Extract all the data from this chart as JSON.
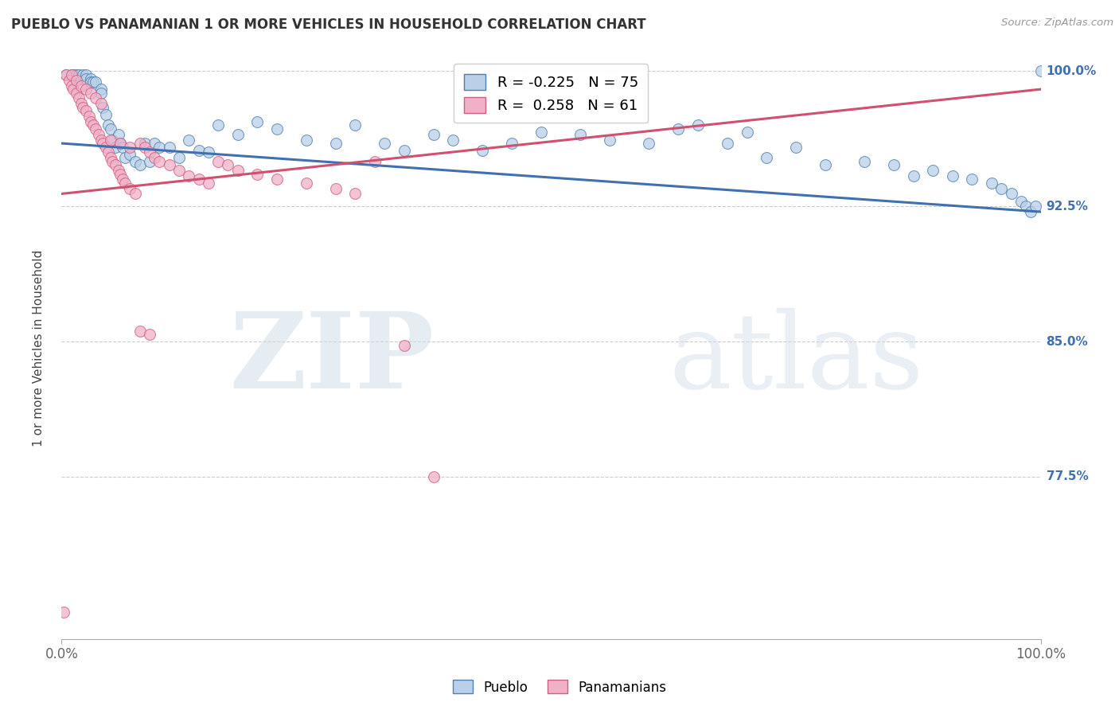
{
  "title": "PUEBLO VS PANAMANIAN 1 OR MORE VEHICLES IN HOUSEHOLD CORRELATION CHART",
  "source": "Source: ZipAtlas.com",
  "ylabel_left": "1 or more Vehicles in Household",
  "legend_blue_label": "Pueblo",
  "legend_pink_label": "Panamanians",
  "R_blue": -0.225,
  "N_blue": 75,
  "R_pink": 0.258,
  "N_pink": 61,
  "blue_color": "#b8d0e8",
  "pink_color": "#f0b0c8",
  "blue_edge_color": "#5080b0",
  "pink_edge_color": "#d06080",
  "blue_line_color": "#4070b0",
  "pink_line_color": "#d05070",
  "xmin": 0.0,
  "xmax": 1.0,
  "ymin": 0.685,
  "ymax": 1.008,
  "yticks": [
    0.775,
    0.85,
    0.925,
    1.0
  ],
  "ytick_labels": [
    "77.5%",
    "85.0%",
    "92.5%",
    "100.0%"
  ],
  "xticks": [
    0.0,
    1.0
  ],
  "xtick_labels": [
    "0.0%",
    "100.0%"
  ],
  "watermark_zip": "ZIP",
  "watermark_atlas": "atlas",
  "blue_line_start_y": 0.96,
  "blue_line_end_y": 0.922,
  "pink_line_start_y": 0.932,
  "pink_line_end_y": 0.99,
  "blue_scatter_x": [
    0.005,
    0.01,
    0.012,
    0.015,
    0.018,
    0.02,
    0.022,
    0.025,
    0.025,
    0.03,
    0.03,
    0.032,
    0.035,
    0.04,
    0.04,
    0.042,
    0.045,
    0.048,
    0.05,
    0.052,
    0.055,
    0.058,
    0.06,
    0.062,
    0.065,
    0.07,
    0.075,
    0.08,
    0.085,
    0.09,
    0.095,
    0.1,
    0.11,
    0.12,
    0.13,
    0.14,
    0.15,
    0.16,
    0.18,
    0.2,
    0.22,
    0.25,
    0.28,
    0.3,
    0.33,
    0.35,
    0.38,
    0.4,
    0.43,
    0.46,
    0.49,
    0.53,
    0.56,
    0.6,
    0.63,
    0.65,
    0.68,
    0.7,
    0.72,
    0.75,
    0.78,
    0.82,
    0.85,
    0.87,
    0.89,
    0.91,
    0.93,
    0.95,
    0.96,
    0.97,
    0.98,
    0.985,
    0.99,
    0.995,
    1.0
  ],
  "blue_scatter_y": [
    0.998,
    0.998,
    0.998,
    0.998,
    0.998,
    0.996,
    0.998,
    0.998,
    0.996,
    0.996,
    0.994,
    0.994,
    0.994,
    0.99,
    0.988,
    0.98,
    0.976,
    0.97,
    0.968,
    0.962,
    0.958,
    0.965,
    0.96,
    0.958,
    0.952,
    0.954,
    0.95,
    0.948,
    0.96,
    0.95,
    0.96,
    0.958,
    0.958,
    0.952,
    0.962,
    0.956,
    0.955,
    0.97,
    0.965,
    0.972,
    0.968,
    0.962,
    0.96,
    0.97,
    0.96,
    0.956,
    0.965,
    0.962,
    0.956,
    0.96,
    0.966,
    0.965,
    0.962,
    0.96,
    0.968,
    0.97,
    0.96,
    0.966,
    0.952,
    0.958,
    0.948,
    0.95,
    0.948,
    0.942,
    0.945,
    0.942,
    0.94,
    0.938,
    0.935,
    0.932,
    0.928,
    0.925,
    0.922,
    0.925,
    1.0
  ],
  "pink_scatter_x": [
    0.002,
    0.005,
    0.008,
    0.01,
    0.012,
    0.015,
    0.018,
    0.02,
    0.022,
    0.025,
    0.028,
    0.03,
    0.032,
    0.035,
    0.038,
    0.04,
    0.042,
    0.045,
    0.048,
    0.05,
    0.052,
    0.055,
    0.058,
    0.06,
    0.062,
    0.065,
    0.07,
    0.075,
    0.08,
    0.085,
    0.09,
    0.095,
    0.1,
    0.11,
    0.12,
    0.13,
    0.14,
    0.15,
    0.16,
    0.17,
    0.18,
    0.2,
    0.22,
    0.25,
    0.28,
    0.3,
    0.32,
    0.35,
    0.38,
    0.05,
    0.06,
    0.07,
    0.08,
    0.09,
    0.01,
    0.015,
    0.02,
    0.025,
    0.03,
    0.035,
    0.04
  ],
  "pink_scatter_y": [
    0.7,
    0.998,
    0.995,
    0.992,
    0.99,
    0.988,
    0.985,
    0.982,
    0.98,
    0.978,
    0.975,
    0.972,
    0.97,
    0.968,
    0.965,
    0.962,
    0.96,
    0.958,
    0.955,
    0.952,
    0.95,
    0.948,
    0.945,
    0.943,
    0.94,
    0.938,
    0.935,
    0.932,
    0.96,
    0.958,
    0.955,
    0.952,
    0.95,
    0.948,
    0.945,
    0.942,
    0.94,
    0.938,
    0.95,
    0.948,
    0.945,
    0.943,
    0.94,
    0.938,
    0.935,
    0.932,
    0.95,
    0.848,
    0.775,
    0.962,
    0.96,
    0.958,
    0.856,
    0.854,
    0.998,
    0.995,
    0.992,
    0.99,
    0.988,
    0.985,
    0.982
  ]
}
